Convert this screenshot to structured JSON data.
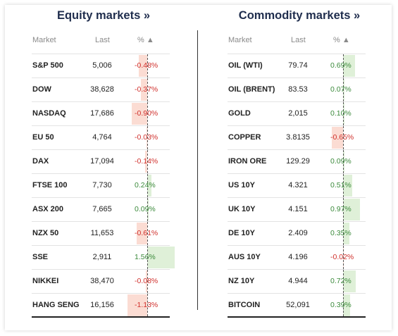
{
  "colors": {
    "negative_text": "#d0302c",
    "positive_text": "#3b8a3b",
    "negative_bar": "#fbdcd3",
    "positive_bar": "#dff0d8"
  },
  "bar_scale_pct": 1.13,
  "equity": {
    "title": "Equity markets »",
    "headers": {
      "market": "Market",
      "last": "Last",
      "pct": "% ▲"
    },
    "rows": [
      {
        "name": "S&P 500",
        "last": "5,006",
        "pct": "-0.48%",
        "value": -0.48
      },
      {
        "name": "DOW",
        "last": "38,628",
        "pct": "-0.37%",
        "value": -0.37
      },
      {
        "name": "NASDAQ",
        "last": "17,686",
        "pct": "-0.90%",
        "value": -0.9
      },
      {
        "name": "EU 50",
        "last": "4,764",
        "pct": "-0.03%",
        "value": -0.03
      },
      {
        "name": "DAX",
        "last": "17,094",
        "pct": "-0.14%",
        "value": -0.14
      },
      {
        "name": "FTSE 100",
        "last": "7,730",
        "pct": "0.24%",
        "value": 0.24
      },
      {
        "name": "ASX 200",
        "last": "7,665",
        "pct": "0.09%",
        "value": 0.09
      },
      {
        "name": "NZX 50",
        "last": "11,653",
        "pct": "-0.61%",
        "value": -0.61
      },
      {
        "name": "SSE",
        "last": "2,911",
        "pct": "1.56%",
        "value": 1.56
      },
      {
        "name": "NIKKEI",
        "last": "38,470",
        "pct": "-0.08%",
        "value": -0.08
      },
      {
        "name": "HANG SENG",
        "last": "16,156",
        "pct": "-1.13%",
        "value": -1.13
      }
    ]
  },
  "commodity": {
    "title": "Commodity markets »",
    "headers": {
      "market": "Market",
      "last": "Last",
      "pct": "% ▲"
    },
    "rows": [
      {
        "name": "OIL (WTI)",
        "last": "79.74",
        "pct": "0.69%",
        "value": 0.69
      },
      {
        "name": "OIL (BRENT)",
        "last": "83.53",
        "pct": "0.07%",
        "value": 0.07
      },
      {
        "name": "GOLD",
        "last": "2,015",
        "pct": "0.10%",
        "value": 0.1
      },
      {
        "name": "COPPER",
        "last": "3.8135",
        "pct": "-0.65%",
        "value": -0.65
      },
      {
        "name": "IRON ORE",
        "last": "129.29",
        "pct": "0.09%",
        "value": 0.09
      },
      {
        "name": "US 10Y",
        "last": "4.321",
        "pct": "0.51%",
        "value": 0.51
      },
      {
        "name": "UK 10Y",
        "last": "4.151",
        "pct": "0.97%",
        "value": 0.97
      },
      {
        "name": "DE 10Y",
        "last": "2.409",
        "pct": "0.35%",
        "value": 0.35
      },
      {
        "name": "AUS 10Y",
        "last": "4.196",
        "pct": "-0.02%",
        "value": -0.02
      },
      {
        "name": "NZ 10Y",
        "last": "4.944",
        "pct": "0.72%",
        "value": 0.72
      },
      {
        "name": "BITCOIN",
        "last": "52,091",
        "pct": "0.39%",
        "value": 0.39
      }
    ]
  }
}
